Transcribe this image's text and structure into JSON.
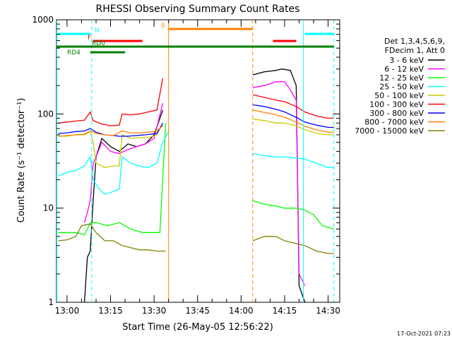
{
  "chart_data": {
    "type": "line",
    "title": "RHESSI Observing Summary Count Rates",
    "xlabel": "Start Time (26-May-05 12:56:22)",
    "ylabel": "Count Rate (s⁻¹ detector⁻¹)",
    "y_scale": "log",
    "ylim": [
      1,
      1000
    ],
    "xlim": [
      "12:56:22",
      "14:34:00"
    ],
    "x_ticks": [
      "13:00",
      "13:15",
      "13:30",
      "13:45",
      "14:00",
      "14:15",
      "14:30"
    ],
    "y_ticks": [
      "1",
      "10",
      "100",
      "1000"
    ],
    "timestamp": "17-Oct-2021 07:23",
    "legend": {
      "placement": "right",
      "header": [
        "Det 1,3,4,5,6,9,",
        "FDecim 1, Att 0"
      ],
      "entries": [
        {
          "label": "3 - 6 keV",
          "color": "#000000"
        },
        {
          "label": "6 - 12 keV",
          "color": "#ff00ff"
        },
        {
          "label": "12 - 25 keV",
          "color": "#00ff00"
        },
        {
          "label": "25 - 50 keV",
          "color": "#00ffff"
        },
        {
          "label": "50 - 100 keV",
          "color": "#cccc00"
        },
        {
          "label": "100 - 300 keV",
          "color": "#ff0000"
        },
        {
          "label": "300 - 800 keV",
          "color": "#0000ff"
        },
        {
          "label": "800 - 7000 keV",
          "color": "#ff8000"
        },
        {
          "label": "7000 - 15000 keV",
          "color": "#808000"
        }
      ]
    },
    "flag_bars": [
      {
        "label": "N",
        "color": "#00ffff",
        "segments": [
          [
            "12:56:22",
            "13:08:00"
          ],
          [
            "14:22:00",
            "14:32:00"
          ]
        ]
      },
      {
        "label": "F",
        "color": "#ff0000",
        "segments": [
          [
            "13:09:00",
            "13:26:00"
          ],
          [
            "14:11:00",
            "14:19:00"
          ]
        ]
      },
      {
        "label": "S",
        "color": "#ff8000",
        "segments": [
          [
            "13:35:00",
            "14:04:00"
          ]
        ]
      },
      {
        "label": "RD0",
        "color": "#008000",
        "segments": [
          [
            "12:56:22",
            "14:32:00"
          ]
        ]
      },
      {
        "label": "RD4",
        "color": "#008000",
        "segments": [
          [
            "13:08:00",
            "13:20:00"
          ]
        ]
      }
    ],
    "night_markers": {
      "entry_dashed": [
        "13:08:30",
        "14:04:00",
        "14:32:00"
      ],
      "exit_solid": [
        "12:56:30",
        "13:35:00",
        "14:21:30"
      ]
    },
    "gaps": [
      [
        "13:35:00",
        "14:04:00"
      ]
    ],
    "series": [
      {
        "name": "3 - 6 keV",
        "color": "#000000",
        "points": [
          [
            "13:06:00",
            1.0
          ],
          [
            "13:07:00",
            3.0
          ],
          [
            "13:08:00",
            3.5
          ],
          [
            "13:09:00",
            12
          ],
          [
            "13:10:00",
            35
          ],
          [
            "13:12:00",
            55
          ],
          [
            "13:15:00",
            45
          ],
          [
            "13:18:00",
            40
          ],
          [
            "13:21:00",
            48
          ],
          [
            "13:24:00",
            45
          ],
          [
            "13:27:00",
            48
          ],
          [
            "13:30:00",
            60
          ],
          [
            "13:33:00",
            110
          ],
          [
            "14:04:00",
            260
          ],
          [
            "14:08:00",
            280
          ],
          [
            "14:12:00",
            290
          ],
          [
            "14:14:00",
            300
          ],
          [
            "14:17:00",
            290
          ],
          [
            "14:19:00",
            200
          ],
          [
            "14:20:00",
            1.5
          ],
          [
            "14:22:00",
            1.0
          ]
        ]
      },
      {
        "name": "6 - 12 keV",
        "color": "#ff00ff",
        "points": [
          [
            "13:06:00",
            7
          ],
          [
            "13:07:00",
            9
          ],
          [
            "13:08:00",
            12
          ],
          [
            "13:09:00",
            30
          ],
          [
            "13:10:00",
            35
          ],
          [
            "13:12:00",
            50
          ],
          [
            "13:15:00",
            40
          ],
          [
            "13:18:00",
            38
          ],
          [
            "13:21:00",
            42
          ],
          [
            "13:24:00",
            45
          ],
          [
            "13:27:00",
            48
          ],
          [
            "13:30:00",
            55
          ],
          [
            "13:33:00",
            130
          ],
          [
            "14:04:00",
            190
          ],
          [
            "14:08:00",
            200
          ],
          [
            "14:12:00",
            220
          ],
          [
            "14:15:00",
            220
          ],
          [
            "14:17:00",
            180
          ],
          [
            "14:19:00",
            140
          ],
          [
            "14:20:00",
            2.0
          ],
          [
            "14:22:00",
            1.5
          ]
        ]
      },
      {
        "name": "12 - 25 keV",
        "color": "#00ff00",
        "points": [
          [
            "12:57:00",
            5.5
          ],
          [
            "13:00:00",
            5.5
          ],
          [
            "13:03:00",
            5.5
          ],
          [
            "13:06:00",
            5.2
          ],
          [
            "13:08:00",
            7
          ],
          [
            "13:10:00",
            7
          ],
          [
            "13:14:00",
            6.5
          ],
          [
            "13:18:00",
            7.0
          ],
          [
            "13:22:00",
            6.0
          ],
          [
            "13:26:00",
            5.5
          ],
          [
            "13:30:00",
            5.5
          ],
          [
            "13:32:00",
            5.5
          ],
          [
            "13:34:00",
            80
          ],
          [
            "14:04:00",
            12
          ],
          [
            "14:08:00",
            11
          ],
          [
            "14:12:00",
            10.5
          ],
          [
            "14:15:00",
            10
          ],
          [
            "14:19:00",
            10
          ],
          [
            "14:22:00",
            9.5
          ],
          [
            "14:25:00",
            8.5
          ],
          [
            "14:28:00",
            6.5
          ],
          [
            "14:32:00",
            6.0
          ]
        ]
      },
      {
        "name": "25 - 50 keV",
        "color": "#00ffff",
        "points": [
          [
            "12:57:00",
            22
          ],
          [
            "13:00:00",
            24
          ],
          [
            "13:03:00",
            25
          ],
          [
            "13:06:00",
            28
          ],
          [
            "13:08:00",
            35
          ],
          [
            "13:09:00",
            20
          ],
          [
            "13:11:00",
            16
          ],
          [
            "13:13:00",
            14
          ],
          [
            "13:16:00",
            15
          ],
          [
            "13:18:00",
            16
          ],
          [
            "13:19:00",
            35
          ],
          [
            "13:22:00",
            30
          ],
          [
            "13:25:00",
            28
          ],
          [
            "13:28:00",
            27
          ],
          [
            "13:31:00",
            30
          ],
          [
            "13:33:00",
            50
          ],
          [
            "13:35:00",
            65
          ],
          [
            "14:04:00",
            38
          ],
          [
            "14:08:00",
            36
          ],
          [
            "14:12:00",
            35
          ],
          [
            "14:15:00",
            35
          ],
          [
            "14:19:00",
            34
          ],
          [
            "14:22:00",
            33
          ],
          [
            "14:26:00",
            30
          ],
          [
            "14:30:00",
            27
          ],
          [
            "14:32:00",
            27
          ]
        ]
      },
      {
        "name": "50 - 100 keV",
        "color": "#cccc00",
        "points": [
          [
            "12:57:00",
            58
          ],
          [
            "13:00:00",
            58
          ],
          [
            "13:03:00",
            60
          ],
          [
            "13:06:00",
            60
          ],
          [
            "13:08:00",
            65
          ],
          [
            "13:09:00",
            50
          ],
          [
            "13:10:00",
            30
          ],
          [
            "13:13:00",
            27
          ],
          [
            "13:16:00",
            28
          ],
          [
            "13:18:00",
            28
          ],
          [
            "13:19:00",
            60
          ],
          [
            "13:22:00",
            55
          ],
          [
            "13:25:00",
            56
          ],
          [
            "13:28:00",
            56
          ],
          [
            "13:31:00",
            60
          ],
          [
            "13:33:00",
            80
          ],
          [
            "14:04:00",
            88
          ],
          [
            "14:08:00",
            85
          ],
          [
            "14:12:00",
            80
          ],
          [
            "14:15:00",
            80
          ],
          [
            "14:19:00",
            75
          ],
          [
            "14:22:00",
            68
          ],
          [
            "14:26:00",
            62
          ],
          [
            "14:30:00",
            60
          ],
          [
            "14:32:00",
            60
          ]
        ]
      },
      {
        "name": "100 - 300 keV",
        "color": "#ff0000",
        "points": [
          [
            "12:57:00",
            80
          ],
          [
            "13:00:00",
            82
          ],
          [
            "13:03:00",
            84
          ],
          [
            "13:06:00",
            86
          ],
          [
            "13:08:00",
            105
          ],
          [
            "13:09:00",
            85
          ],
          [
            "13:12:00",
            78
          ],
          [
            "13:15:00",
            75
          ],
          [
            "13:18:00",
            76
          ],
          [
            "13:19:00",
            100
          ],
          [
            "13:22:00",
            98
          ],
          [
            "13:25:00",
            100
          ],
          [
            "13:28:00",
            105
          ],
          [
            "13:31:00",
            110
          ],
          [
            "13:33:00",
            240
          ],
          [
            "14:04:00",
            160
          ],
          [
            "14:08:00",
            150
          ],
          [
            "14:12:00",
            140
          ],
          [
            "14:15:00",
            135
          ],
          [
            "14:19:00",
            120
          ],
          [
            "14:22:00",
            105
          ],
          [
            "14:26:00",
            95
          ],
          [
            "14:30:00",
            90
          ],
          [
            "14:32:00",
            90
          ]
        ]
      },
      {
        "name": "300 - 800 keV",
        "color": "#0000ff",
        "points": [
          [
            "12:57:00",
            62
          ],
          [
            "13:00:00",
            63
          ],
          [
            "13:03:00",
            65
          ],
          [
            "13:06:00",
            66
          ],
          [
            "13:08:00",
            70
          ],
          [
            "13:10:00",
            64
          ],
          [
            "13:13:00",
            60
          ],
          [
            "13:16:00",
            59
          ],
          [
            "13:18:00",
            58
          ],
          [
            "13:21:00",
            58
          ],
          [
            "13:24:00",
            59
          ],
          [
            "13:27:00",
            60
          ],
          [
            "13:31:00",
            62
          ],
          [
            "13:33:00",
            80
          ],
          [
            "14:04:00",
            125
          ],
          [
            "14:08:00",
            120
          ],
          [
            "14:12:00",
            112
          ],
          [
            "14:15:00",
            105
          ],
          [
            "14:19:00",
            92
          ],
          [
            "14:22:00",
            82
          ],
          [
            "14:26:00",
            76
          ],
          [
            "14:30:00",
            72
          ],
          [
            "14:32:00",
            72
          ]
        ]
      },
      {
        "name": "800 - 7000 keV",
        "color": "#ff8000",
        "points": [
          [
            "12:57:00",
            58
          ],
          [
            "13:00:00",
            59
          ],
          [
            "13:03:00",
            60
          ],
          [
            "13:06:00",
            61
          ],
          [
            "13:08:00",
            66
          ],
          [
            "13:10:00",
            62
          ],
          [
            "13:13:00",
            60
          ],
          [
            "13:16:00",
            59
          ],
          [
            "13:19:00",
            66
          ],
          [
            "13:22:00",
            63
          ],
          [
            "13:25:00",
            63
          ],
          [
            "13:28:00",
            64
          ],
          [
            "13:31:00",
            66
          ],
          [
            "13:33:00",
            75
          ],
          [
            "14:04:00",
            110
          ],
          [
            "14:08:00",
            104
          ],
          [
            "14:12:00",
            98
          ],
          [
            "14:15:00",
            92
          ],
          [
            "14:19:00",
            82
          ],
          [
            "14:22:00",
            74
          ],
          [
            "14:26:00",
            68
          ],
          [
            "14:30:00",
            64
          ],
          [
            "14:32:00",
            64
          ]
        ]
      },
      {
        "name": "7000 - 15000 keV",
        "color": "#808000",
        "points": [
          [
            "12:57:00",
            4.5
          ],
          [
            "13:00:00",
            4.6
          ],
          [
            "13:03:00",
            5.0
          ],
          [
            "13:05:00",
            6.5
          ],
          [
            "13:08:00",
            6.8
          ],
          [
            "13:10:00",
            5.5
          ],
          [
            "13:13:00",
            4.5
          ],
          [
            "13:16:00",
            4.5
          ],
          [
            "13:19:00",
            4.0
          ],
          [
            "13:22:00",
            3.8
          ],
          [
            "13:25:00",
            3.6
          ],
          [
            "13:28:00",
            3.6
          ],
          [
            "13:31:00",
            3.5
          ],
          [
            "13:34:00",
            3.5
          ],
          [
            "14:04:00",
            4.5
          ],
          [
            "14:08:00",
            5.0
          ],
          [
            "14:12:00",
            5.0
          ],
          [
            "14:15:00",
            4.5
          ],
          [
            "14:19:00",
            4.2
          ],
          [
            "14:22:00",
            4.0
          ],
          [
            "14:26:00",
            3.5
          ],
          [
            "14:30:00",
            3.3
          ],
          [
            "14:32:00",
            3.3
          ]
        ]
      }
    ]
  }
}
